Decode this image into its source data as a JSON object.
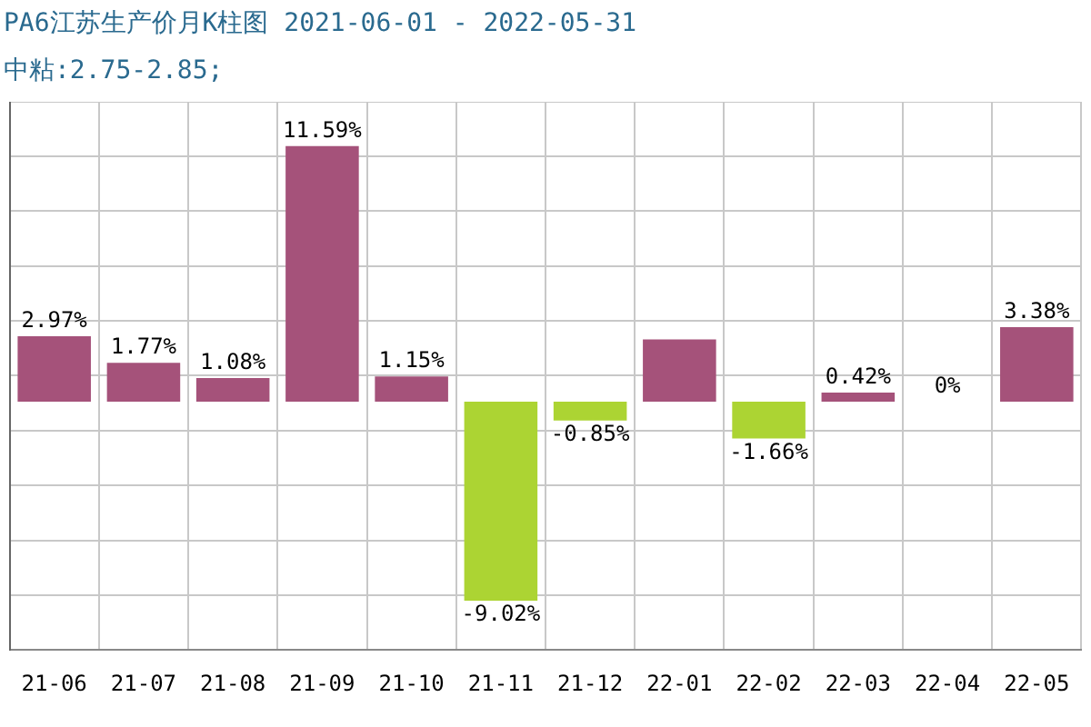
{
  "chart_data": {
    "type": "bar",
    "title": "PA6江苏生产价月K柱图 2021-06-01 - 2022-05-31",
    "subtitle": "中粘:2.75-2.85;",
    "categories": [
      "21-06",
      "21-07",
      "21-08",
      "21-09",
      "21-10",
      "21-11",
      "21-12",
      "22-01",
      "22-02",
      "22-03",
      "22-04",
      "22-05"
    ],
    "values": [
      2.97,
      1.77,
      1.08,
      11.59,
      1.15,
      -9.02,
      -0.85,
      2.83,
      -1.66,
      0.42,
      0,
      3.38
    ],
    "value_labels": [
      "2.97%",
      "1.77%",
      "1.08%",
      "11.59%",
      "1.15%",
      "-9.02%",
      "-0.85%",
      null,
      "-1.66%",
      "0.42%",
      "0%",
      "3.38%"
    ],
    "colors": [
      "#a5527a",
      "#a5527a",
      "#a5527a",
      "#a5527a",
      "#a5527a",
      "#acd433",
      "#acd433",
      "#a5527a",
      "#acd433",
      "#a5527a",
      "#a5527a",
      "#a5527a"
    ],
    "ylim": [
      -11.25,
      13.6
    ],
    "yticks": [
      {
        "value": -11.25,
        "label": null
      },
      {
        "value": -8.77,
        "label": null
      },
      {
        "value": -6.28,
        "label": null
      },
      {
        "value": -3.8,
        "label": null
      },
      {
        "value": -1.31,
        "label": null
      },
      {
        "value": 1.18,
        "label": null
      },
      {
        "value": 3.66,
        "label": null
      },
      {
        "value": 6.15,
        "label": null
      },
      {
        "value": 8.64,
        "label": null
      },
      {
        "value": 11.12,
        "label": null
      },
      {
        "value": 13.6,
        "label": null
      }
    ],
    "tick_labels": "x",
    "grid": true
  }
}
